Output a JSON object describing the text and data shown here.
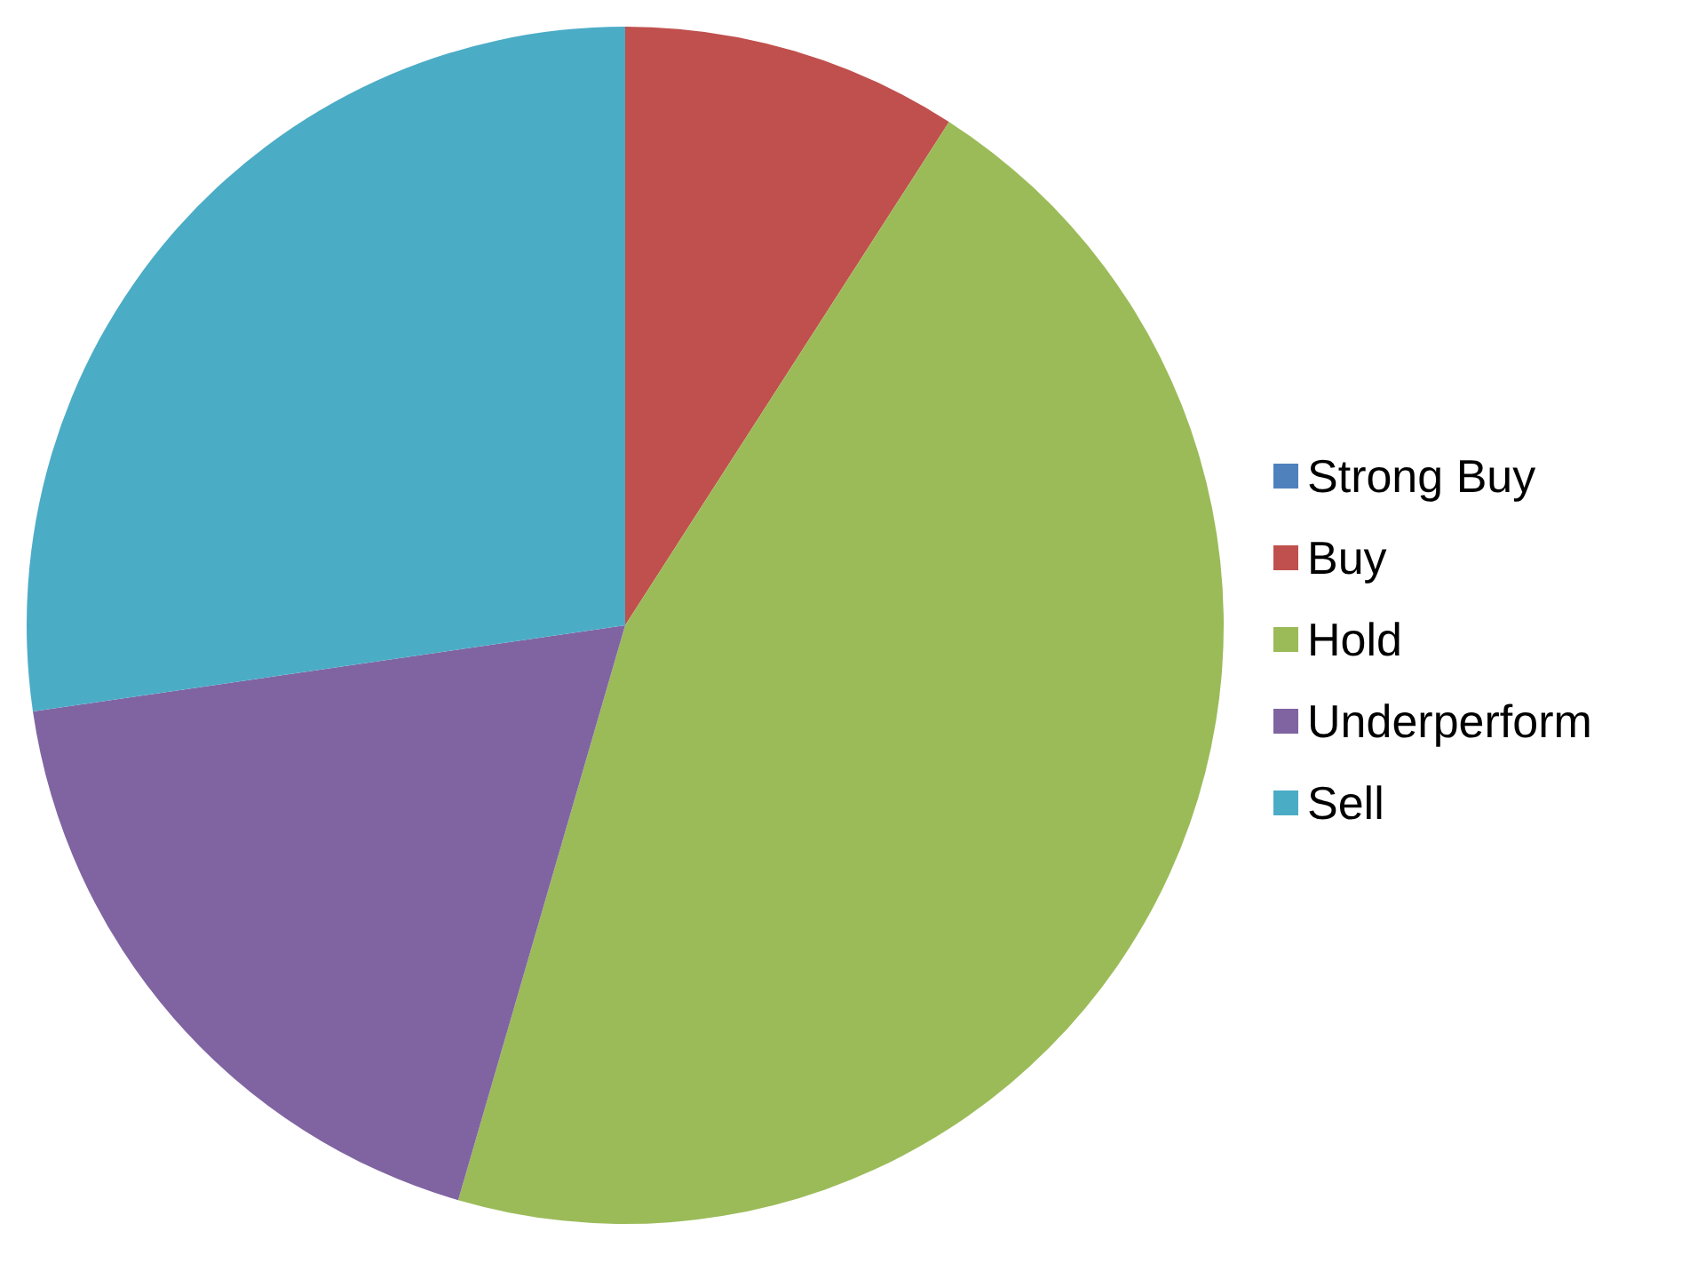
{
  "chart_data": {
    "type": "pie",
    "categories": [
      "Strong Buy",
      "Buy",
      "Hold",
      "Underperform",
      "Sell"
    ],
    "values": [
      0,
      9.1,
      45.4,
      18.2,
      27.3
    ],
    "colors": [
      "#4f81bd",
      "#c0504d",
      "#9bbb59",
      "#8064a2",
      "#4bacc6"
    ],
    "legend": "right"
  }
}
